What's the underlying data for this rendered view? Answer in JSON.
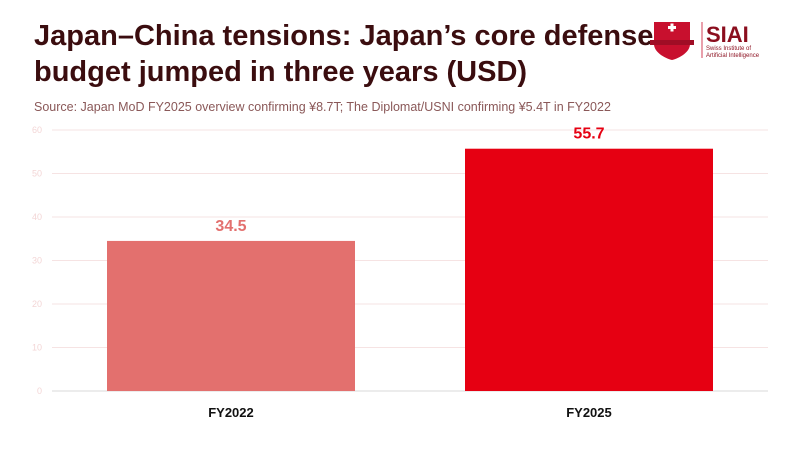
{
  "title": "Japan–China tensions: Japan’s core defense budget jumped in three years (USD)",
  "subtitle": "Source: Japan MoD FY2025 overview confirming ¥8.7T; The Diplomat/USNI confirming ¥5.4T in FY2022",
  "logo": {
    "text": "SIAI",
    "subtext": "Swiss Institute of Artificial Intelligence"
  },
  "chart_data": {
    "type": "bar",
    "categories": [
      "FY2022",
      "FY2025"
    ],
    "values": [
      34.5,
      55.7
    ],
    "colors": [
      "#E3706E",
      "#E60012"
    ],
    "ylim": [
      0,
      60
    ],
    "yticks": [
      0,
      10,
      20,
      30,
      40,
      50,
      60
    ],
    "grid": true,
    "xlabel": "",
    "ylabel": ""
  }
}
